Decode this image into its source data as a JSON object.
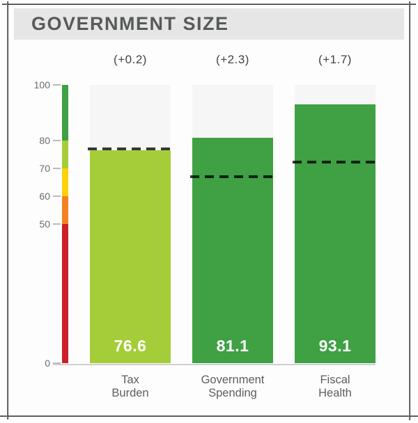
{
  "header": {
    "title": "GOVERNMENT SIZE"
  },
  "colors": {
    "header_band": "#e6e6e6",
    "title_text": "#58595b",
    "track_gray": "#f6f6f6",
    "baseline_gray": "#cfcfcf",
    "dashed_line": "rgba(0,0,0,0.78)",
    "bar_light_green": "#a5cd39",
    "bar_green": "#3fa044",
    "scale_yellow": "#fdd20a",
    "scale_orange": "#f58220",
    "scale_red": "#cb2128"
  },
  "chart_data": {
    "type": "bar",
    "title": "GOVERNMENT SIZE",
    "categories": [
      "Tax Burden",
      "Government Spending",
      "Fiscal Health"
    ],
    "category_lines": [
      [
        "Tax",
        "Burden"
      ],
      [
        "Government",
        "Spending"
      ],
      [
        "Fiscal",
        "Health"
      ]
    ],
    "values": [
      76.6,
      81.1,
      93.1
    ],
    "value_labels": [
      "76.6",
      "81.1",
      "93.1"
    ],
    "deltas": [
      0.2,
      2.3,
      1.7
    ],
    "delta_labels": [
      "(+0.2)",
      "(+2.3)",
      "(+1.7)"
    ],
    "dashed_benchmark_values": [
      77.0,
      67.0,
      72.2
    ],
    "bar_colors": [
      "#a5cd39",
      "#3fa044",
      "#3fa044"
    ],
    "ylim": [
      0,
      100
    ],
    "yticks": [
      100,
      80,
      70,
      60,
      50,
      0
    ],
    "grid": "off",
    "legend": "none",
    "scale_segments": [
      {
        "from": 80,
        "to": 100,
        "color": "#3fa044"
      },
      {
        "from": 70,
        "to": 80,
        "color": "#a5cd39"
      },
      {
        "from": 60,
        "to": 70,
        "color": "#fdd20a"
      },
      {
        "from": 50,
        "to": 60,
        "color": "#f58220"
      },
      {
        "from": 0,
        "to": 50,
        "color": "#cb2128"
      }
    ]
  }
}
